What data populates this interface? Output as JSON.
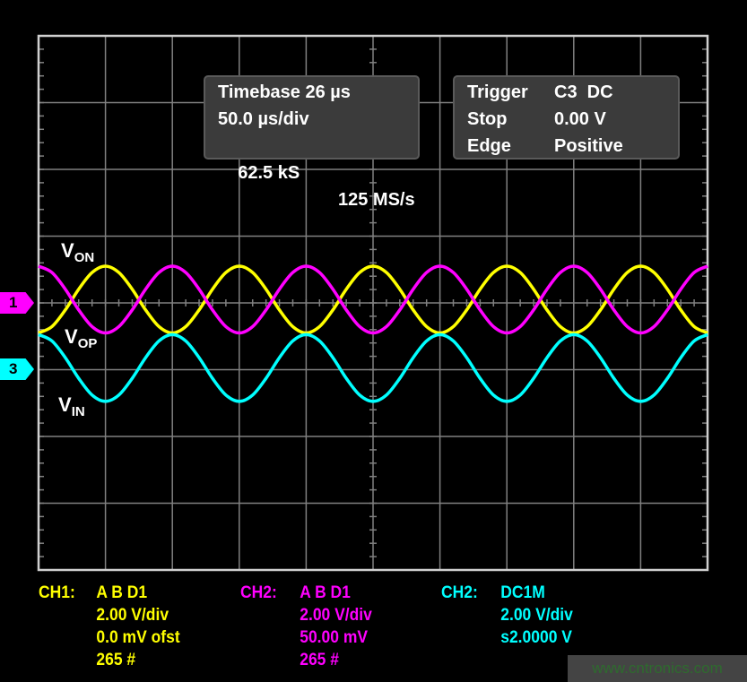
{
  "timebase_box": {
    "line1": "Timebase 26 µs",
    "line2": "50.0 µs/div",
    "samples": "62.5 kS",
    "rate": "125 MS/s"
  },
  "trigger_box": {
    "label1": "Trigger",
    "value1": "C3  DC",
    "label2": "Stop",
    "value2": "0.00 V",
    "label3": "Edge",
    "value3": "Positive"
  },
  "trace_labels": {
    "von": {
      "main": "V",
      "sub": "ON"
    },
    "vop": {
      "main": "V",
      "sub": "OP"
    },
    "vin": {
      "main": "V",
      "sub": "IN"
    }
  },
  "markers": {
    "ch1": "1",
    "ch3": "3"
  },
  "channels": [
    {
      "title": "CH1:",
      "line1": "A B D1",
      "line2": "2.00 V/div",
      "line3": "0.0 mV ofst",
      "line4": "265 #",
      "color": "#ffff00"
    },
    {
      "title": "CH2:",
      "line1": "A B D1",
      "line2": "2.00 V/div",
      "line3": "50.00 mV",
      "line4": "265 #",
      "color": "#ff00ff"
    },
    {
      "title": "CH2:",
      "line1": "DC1M",
      "line2": "2.00 V/div",
      "line3": "s2.0000 V",
      "line4": "",
      "color": "#00ffff"
    }
  ],
  "watermark": "www.cntronics.com",
  "chart_data": {
    "type": "line",
    "grid": true,
    "x_divisions": 10,
    "y_divisions": 8,
    "xunit": "µs",
    "yunit": "V",
    "xlim": [
      0,
      500
    ],
    "ylim": [
      -8,
      8
    ],
    "x": [
      0,
      10,
      20,
      30,
      40,
      50,
      60,
      70,
      80,
      90,
      100,
      110,
      120,
      130,
      140,
      150,
      160,
      170,
      180,
      190,
      200,
      210,
      220,
      230,
      240,
      250,
      260,
      270,
      280,
      290,
      300,
      310,
      320,
      330,
      340,
      350,
      360,
      370,
      380,
      390,
      400,
      410,
      420,
      430,
      440,
      450,
      460,
      470,
      480,
      490,
      500
    ],
    "series": [
      {
        "label": "VOP",
        "color": "#ffff00",
        "reference_marker": "1",
        "values": [
          -0.9,
          -0.71,
          -0.21,
          0.41,
          0.91,
          1.1,
          0.91,
          0.41,
          -0.21,
          -0.71,
          -0.9,
          -0.71,
          -0.21,
          0.41,
          0.91,
          1.1,
          0.91,
          0.41,
          -0.21,
          -0.71,
          -0.9,
          -0.71,
          -0.21,
          0.41,
          0.91,
          1.1,
          0.91,
          0.41,
          -0.21,
          -0.71,
          -0.9,
          -0.71,
          -0.21,
          0.41,
          0.91,
          1.1,
          0.91,
          0.41,
          -0.21,
          -0.71,
          -0.9,
          -0.71,
          -0.21,
          0.41,
          0.91,
          1.1,
          0.91,
          0.41,
          -0.21,
          -0.71,
          -0.9
        ]
      },
      {
        "label": "VON",
        "color": "#ff00ff",
        "reference_marker": "1",
        "values": [
          1.1,
          0.91,
          0.41,
          -0.21,
          -0.71,
          -0.9,
          -0.71,
          -0.21,
          0.41,
          0.91,
          1.1,
          0.91,
          0.41,
          -0.21,
          -0.71,
          -0.9,
          -0.71,
          -0.21,
          0.41,
          0.91,
          1.1,
          0.91,
          0.41,
          -0.21,
          -0.71,
          -0.9,
          -0.71,
          -0.21,
          0.41,
          0.91,
          1.1,
          0.91,
          0.41,
          -0.21,
          -0.71,
          -0.9,
          -0.71,
          -0.21,
          0.41,
          0.91,
          1.1,
          0.91,
          0.41,
          -0.21,
          -0.71,
          -0.9,
          -0.71,
          -0.21,
          0.41,
          0.91,
          1.1
        ]
      },
      {
        "label": "VIN",
        "color": "#00ffff",
        "reference_marker": "3",
        "values": [
          1.05,
          0.86,
          0.36,
          -0.26,
          -0.76,
          -0.95,
          -0.76,
          -0.26,
          0.36,
          0.86,
          1.05,
          0.86,
          0.36,
          -0.26,
          -0.76,
          -0.95,
          -0.76,
          -0.26,
          0.36,
          0.86,
          1.05,
          0.86,
          0.36,
          -0.26,
          -0.76,
          -0.95,
          -0.76,
          -0.26,
          0.36,
          0.86,
          1.05,
          0.86,
          0.36,
          -0.26,
          -0.76,
          -0.95,
          -0.76,
          -0.26,
          0.36,
          0.86,
          1.05,
          0.86,
          0.36,
          -0.26,
          -0.76,
          -0.95,
          -0.76,
          -0.26,
          0.36,
          0.86,
          1.05
        ]
      }
    ]
  }
}
